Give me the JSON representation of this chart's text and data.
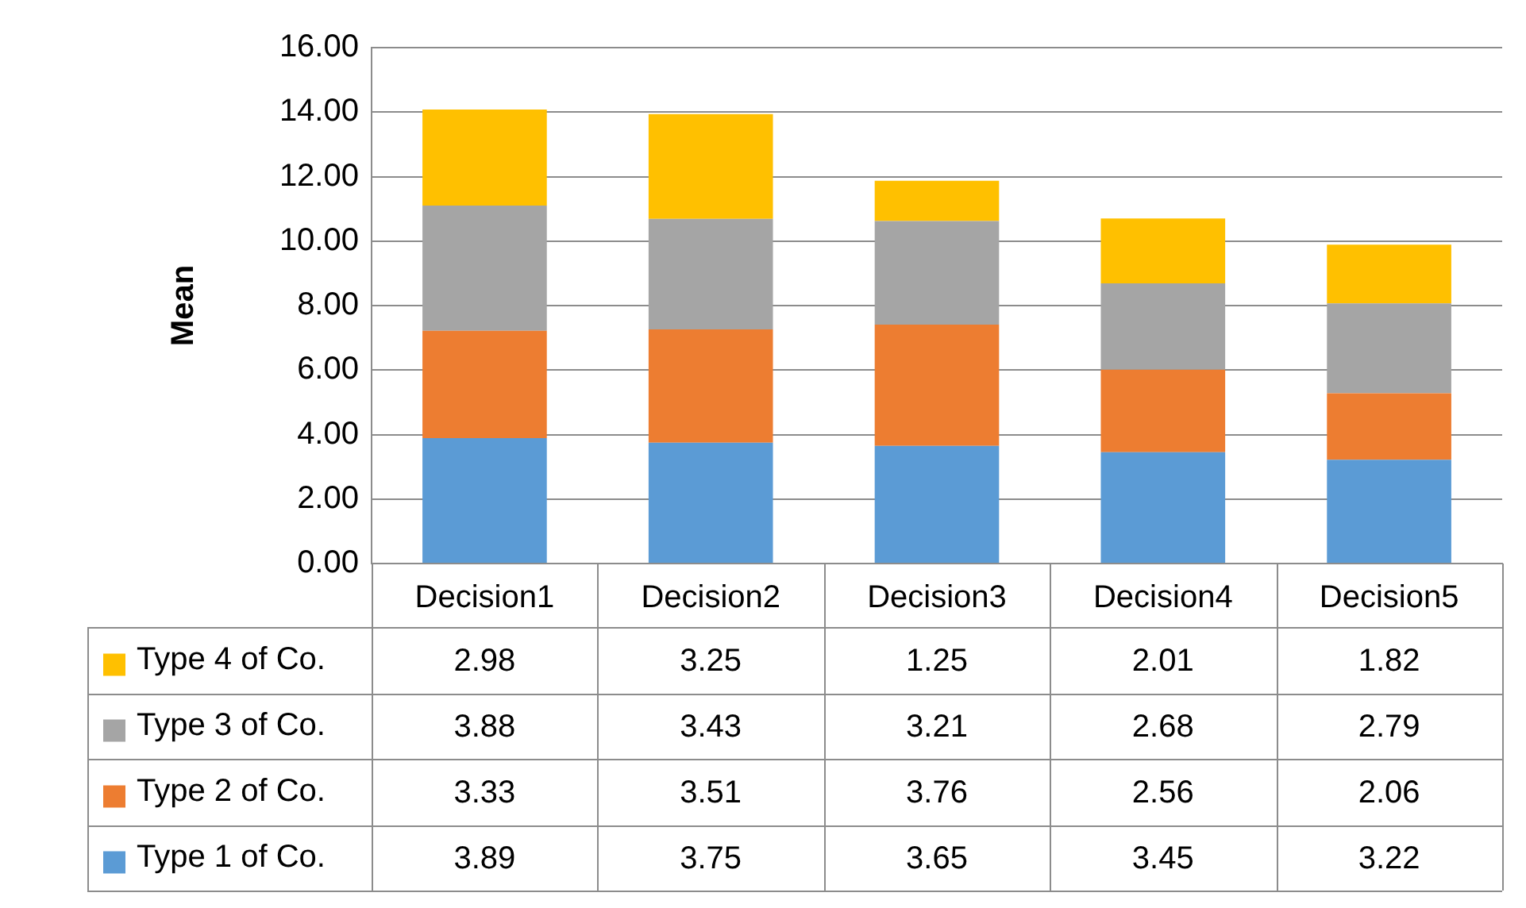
{
  "chart_data": {
    "type": "bar",
    "stacked": true,
    "ylabel": "Mean",
    "categories": [
      "Decision1",
      "Decision2",
      "Decision3",
      "Decision4",
      "Decision5"
    ],
    "series": [
      {
        "name": "Type 1 of Co.",
        "color": "#5b9bd5",
        "values": [
          3.89,
          3.75,
          3.65,
          3.45,
          3.22
        ]
      },
      {
        "name": "Type 2 of Co.",
        "color": "#ed7d31",
        "values": [
          3.33,
          3.51,
          3.76,
          2.56,
          2.06
        ]
      },
      {
        "name": "Type 3 of Co.",
        "color": "#a5a5a5",
        "values": [
          3.88,
          3.43,
          3.21,
          2.68,
          2.79
        ]
      },
      {
        "name": "Type 4 of Co.",
        "color": "#ffc000",
        "values": [
          2.98,
          3.25,
          1.25,
          2.01,
          1.82
        ]
      }
    ],
    "ylim": [
      0,
      16
    ],
    "yticks": [
      {
        "value": 0,
        "label": "0.00"
      },
      {
        "value": 2,
        "label": "2.00"
      },
      {
        "value": 4,
        "label": "4.00"
      },
      {
        "value": 6,
        "label": "6.00"
      },
      {
        "value": 8,
        "label": "8.00"
      },
      {
        "value": 10,
        "label": "10.00"
      },
      {
        "value": 12,
        "label": "12.00"
      },
      {
        "value": 14,
        "label": "14.00"
      },
      {
        "value": 16,
        "label": "16.00"
      }
    ],
    "grid": "y",
    "legend": "bottom left",
    "data_labels": true
  }
}
